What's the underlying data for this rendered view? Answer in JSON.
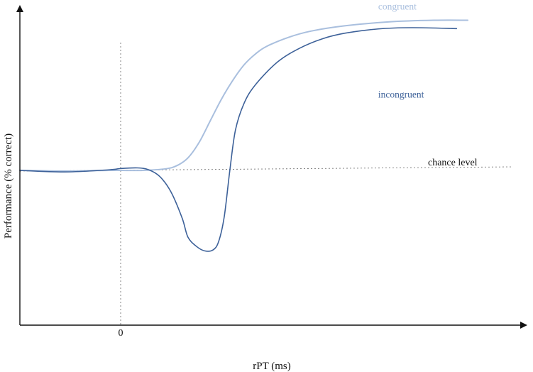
{
  "chart_data": {
    "type": "line",
    "title": "",
    "xlabel": "rPT (ms)",
    "ylabel": "Performance (% correct)",
    "x_tick_labels": [
      {
        "x": 0,
        "label": "0"
      }
    ],
    "xlim": [
      -18,
      72
    ],
    "ylim": [
      0,
      100
    ],
    "grid": false,
    "legend": "inline labels next to curves",
    "reference_lines": [
      {
        "orientation": "vertical",
        "x": 0,
        "style": "dotted"
      },
      {
        "orientation": "horizontal",
        "y": 50,
        "label": "chance level",
        "style": "dotted"
      }
    ],
    "series": [
      {
        "name": "congruent",
        "color": "#a9bfde",
        "label_at": [
          46,
          102
        ],
        "points": [
          [
            -18,
            50
          ],
          [
            -10,
            49.8
          ],
          [
            -2,
            50
          ],
          [
            0,
            50
          ],
          [
            4,
            50
          ],
          [
            8,
            50.5
          ],
          [
            10,
            51.5
          ],
          [
            12,
            54
          ],
          [
            14,
            59
          ],
          [
            16,
            66
          ],
          [
            18,
            73
          ],
          [
            20,
            79
          ],
          [
            22,
            84
          ],
          [
            24,
            87.5
          ],
          [
            26,
            90
          ],
          [
            30,
            93
          ],
          [
            34,
            95
          ],
          [
            40,
            96.7
          ],
          [
            48,
            98
          ],
          [
            56,
            98.5
          ],
          [
            62,
            98.5
          ]
        ]
      },
      {
        "name": "incongruent",
        "color": "#3d6199",
        "label_at": [
          46,
          73.5
        ],
        "points": [
          [
            -18,
            50
          ],
          [
            -10,
            49.5
          ],
          [
            -2,
            50.2
          ],
          [
            0,
            50.6
          ],
          [
            3,
            50.8
          ],
          [
            5,
            50.2
          ],
          [
            7,
            48
          ],
          [
            9,
            43
          ],
          [
            11,
            34.5
          ],
          [
            12,
            28.5
          ],
          [
            13.5,
            25.5
          ],
          [
            15,
            24
          ],
          [
            16.5,
            24.3
          ],
          [
            17.5,
            27
          ],
          [
            18.5,
            35
          ],
          [
            19.5,
            50
          ],
          [
            20.5,
            63
          ],
          [
            22,
            71.5
          ],
          [
            24,
            77.5
          ],
          [
            28,
            85
          ],
          [
            32,
            89.5
          ],
          [
            36,
            92.5
          ],
          [
            40,
            94.3
          ],
          [
            46,
            95.7
          ],
          [
            52,
            96.1
          ],
          [
            60,
            95.8
          ]
        ]
      }
    ]
  },
  "annotations": {
    "chance_label": "chance level"
  }
}
